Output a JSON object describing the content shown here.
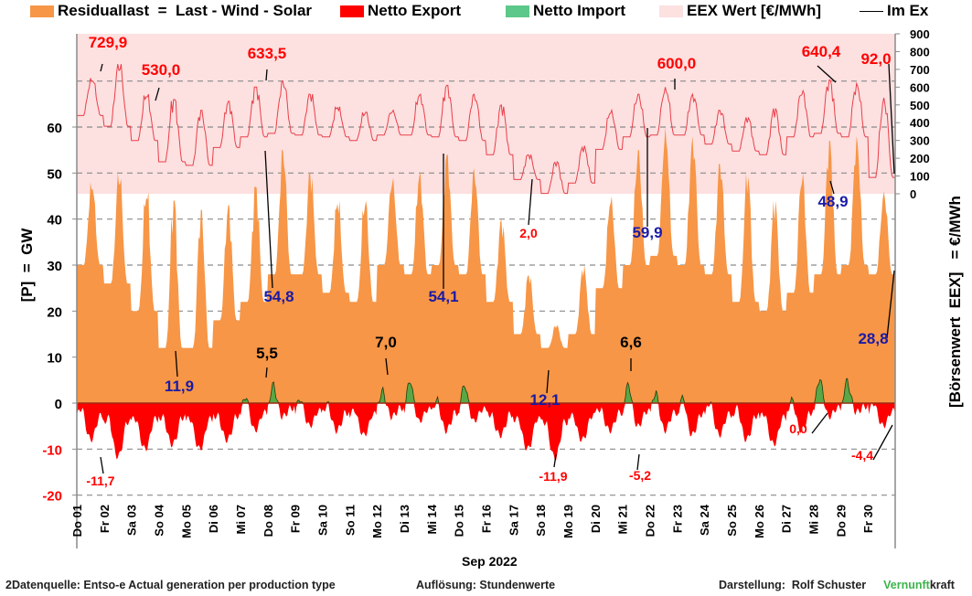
{
  "legend": [
    {
      "label": "Residuallast  =  Last - Wind - Solar",
      "color": "#f79646",
      "kind": "area"
    },
    {
      "label": "Netto Export",
      "color": "#ff0000",
      "kind": "area"
    },
    {
      "label": "Netto Import",
      "color": "#5cc88a",
      "kind": "area"
    },
    {
      "label": "EEX Wert [€/MWh]",
      "color": "#fde0e0",
      "kind": "area"
    },
    {
      "label": "Im Ex",
      "color": "#000000",
      "kind": "line"
    }
  ],
  "footer": {
    "source": "2Datenquelle: Entso-e  Actual generation per production type",
    "resolution": "Auflösung: Stundenwerte",
    "author": "Darstellung:  Rolf Schuster",
    "brand_green": "Vernunft",
    "brand_black": "kraft"
  },
  "chart_data": {
    "type": "area",
    "title": "",
    "xlabel": "Sep 2022",
    "ylabel_left": "[P]  =  GW",
    "ylabel_right": "[Börsenwert  EEX]   = €/MWh",
    "x_ticks": [
      "Do 01",
      "Fr 02",
      "Sa 03",
      "So 04",
      "Mo 05",
      "Di 06",
      "Mi 07",
      "Do 08",
      "Fr 09",
      "Sa 10",
      "So 11",
      "Mo 12",
      "Di 13",
      "Mi 14",
      "Do 15",
      "Fr 16",
      "Sa 17",
      "So 18",
      "Mo 19",
      "Di 20",
      "Mi 21",
      "Do 22",
      "Fr 23",
      "Sa 24",
      "So 25",
      "Mo 26",
      "Di 27",
      "Mi 28",
      "Do 29",
      "Fr 30"
    ],
    "y_left": {
      "ticks": [
        60,
        50,
        40,
        30,
        20,
        10,
        0,
        -10,
        -20
      ],
      "range": [
        -20,
        70
      ],
      "negative_tick_color": "#ff0000"
    },
    "y_right": {
      "ticks": [
        900,
        800,
        700,
        600,
        500,
        400,
        300,
        200,
        100,
        0
      ],
      "range": [
        0,
        900
      ]
    },
    "grid": "horizontal dashed",
    "legend_position": "top",
    "colors": {
      "residual": "#f79646",
      "export": "#ff0000",
      "import": "#5aa845",
      "eex_band": "#fde0e0",
      "eex_line": "#e8404a",
      "baseline": "#9c2a10"
    },
    "series": [
      {
        "name": "Residuallast",
        "unit": "GW",
        "daily_peaks": [
          48,
          50,
          46,
          44,
          42,
          43,
          47,
          55,
          50,
          44,
          44,
          49,
          50,
          54,
          51,
          40,
          28,
          17,
          30,
          45,
          55,
          60,
          58,
          52,
          50,
          44,
          50,
          57,
          58,
          46
        ],
        "daily_troughs": [
          30,
          26,
          20,
          12,
          12,
          18,
          22,
          28,
          28,
          24,
          22,
          30,
          28,
          30,
          28,
          22,
          15,
          12,
          15,
          25,
          30,
          32,
          30,
          28,
          22,
          20,
          24,
          28,
          30,
          28
        ]
      },
      {
        "name": "Netto Export/Import",
        "unit": "GW",
        "daily_min": [
          -8,
          -11.7,
          -10,
          -9,
          -10,
          -8,
          -6,
          -3,
          -5,
          -6,
          -7,
          -3,
          -4,
          -6,
          -4,
          -7,
          -10,
          -11.9,
          -8,
          -6,
          -5.2,
          -6,
          -7,
          -7,
          -8,
          -9,
          -6,
          -3,
          -2,
          -5
        ],
        "daily_max": [
          2,
          1,
          0,
          0,
          0,
          0,
          4,
          5.5,
          3,
          2,
          1,
          4,
          7,
          3,
          6,
          0,
          0,
          0,
          0,
          1,
          6.6,
          5,
          4,
          3,
          2,
          1,
          3,
          7,
          6,
          2
        ]
      },
      {
        "name": "EEX Wert",
        "unit": "€/MWh",
        "daily_peaks": [
          650,
          729.9,
          560,
          530,
          470,
          520,
          600,
          633.5,
          560,
          490,
          460,
          470,
          560,
          610,
          560,
          500,
          220,
          180,
          270,
          470,
          560,
          600,
          560,
          470,
          430,
          480,
          580,
          640.4,
          620,
          540
        ],
        "daily_troughs": [
          440,
          380,
          300,
          180,
          160,
          260,
          320,
          340,
          330,
          320,
          300,
          330,
          330,
          320,
          300,
          220,
          80,
          2,
          60,
          250,
          320,
          330,
          330,
          280,
          240,
          220,
          320,
          340,
          320,
          92
        ]
      }
    ],
    "annotations": [
      {
        "text": "729,9",
        "series": "EEX Wert",
        "day": "Fr 02",
        "color": "#ff0000"
      },
      {
        "text": "530,0",
        "series": "EEX Wert",
        "day": "So 04",
        "color": "#ff0000"
      },
      {
        "text": "633,5",
        "series": "EEX Wert",
        "day": "Do 08",
        "color": "#ff0000"
      },
      {
        "text": "2,0",
        "series": "EEX Wert",
        "day": "Sa 17",
        "color": "#ff0000"
      },
      {
        "text": "600,0",
        "series": "EEX Wert",
        "day": "Do 22",
        "color": "#ff0000"
      },
      {
        "text": "640,4",
        "series": "EEX Wert",
        "day": "Do 29",
        "color": "#ff0000"
      },
      {
        "text": "92,0",
        "series": "EEX Wert",
        "day": "Fr 30",
        "color": "#ff0000"
      },
      {
        "text": "11,9",
        "series": "Residuallast",
        "day": "Mo 05",
        "color": "#1a1aa6"
      },
      {
        "text": "54,8",
        "series": "Residuallast",
        "day": "Do 08",
        "color": "#1a1aa6"
      },
      {
        "text": "54,1",
        "series": "Residuallast",
        "day": "Mi 14",
        "color": "#1a1aa6"
      },
      {
        "text": "12,1",
        "series": "Residuallast",
        "day": "So 18",
        "color": "#1a1aa6"
      },
      {
        "text": "59,9",
        "series": "Residuallast",
        "day": "Do 22",
        "color": "#1a1aa6"
      },
      {
        "text": "48,9",
        "series": "Residuallast",
        "day": "Do 29",
        "color": "#1a1aa6"
      },
      {
        "text": "28,8",
        "series": "Residuallast",
        "day": "Fr 30",
        "color": "#1a1aa6"
      },
      {
        "text": "5,5",
        "series": "Netto Import",
        "day": "Do 08",
        "color": "#000000"
      },
      {
        "text": "7,0",
        "series": "Netto Import",
        "day": "Mo 12",
        "color": "#000000"
      },
      {
        "text": "6,6",
        "series": "Netto Import",
        "day": "Mi 21",
        "color": "#000000"
      },
      {
        "text": "0,0",
        "series": "Netto Import",
        "day": "Do 29",
        "color": "#ff0000"
      },
      {
        "text": "-11,7",
        "series": "Netto Export",
        "day": "Fr 02",
        "color": "#ff0000"
      },
      {
        "text": "-11,9",
        "series": "Netto Export",
        "day": "So 18",
        "color": "#ff0000"
      },
      {
        "text": "-5,2",
        "series": "Netto Export",
        "day": "Mi 21",
        "color": "#ff0000"
      },
      {
        "text": "-4,4",
        "series": "Netto Export",
        "day": "Fr 30",
        "color": "#ff0000"
      }
    ]
  }
}
